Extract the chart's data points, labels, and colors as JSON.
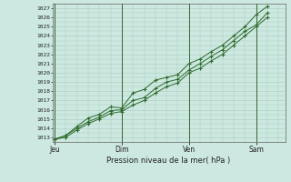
{
  "bg_color": "#cce8e0",
  "line_color": "#2d6a2d",
  "grid_color": "#aaccbb",
  "vline_color": "#336633",
  "xlabel": "Pression niveau de la mer( hPa )",
  "ylim": [
    1012.5,
    1027.5
  ],
  "yticks": [
    1013,
    1014,
    1015,
    1016,
    1017,
    1018,
    1019,
    1020,
    1021,
    1022,
    1023,
    1024,
    1025,
    1026,
    1027
  ],
  "xtick_labels": [
    "Jeu",
    "Dim",
    "Ven",
    "Sam"
  ],
  "xtick_positions": [
    0.0,
    3.0,
    6.0,
    9.0
  ],
  "xlim": [
    -0.1,
    10.3
  ],
  "series1_x": [
    0.0,
    0.5,
    1.0,
    1.5,
    2.0,
    2.5,
    3.0,
    3.5,
    4.0,
    4.5,
    5.0,
    5.5,
    6.0,
    6.5,
    7.0,
    7.5,
    8.0,
    8.5,
    9.0,
    9.5
  ],
  "series1_y": [
    1012.8,
    1013.2,
    1014.2,
    1015.1,
    1015.5,
    1016.3,
    1016.2,
    1017.8,
    1018.2,
    1019.2,
    1019.5,
    1019.8,
    1021.0,
    1021.5,
    1022.3,
    1023.0,
    1024.0,
    1025.0,
    1026.3,
    1027.2
  ],
  "series2_x": [
    0.0,
    0.5,
    1.0,
    1.5,
    2.0,
    2.5,
    3.0,
    3.5,
    4.0,
    4.5,
    5.0,
    5.5,
    6.0,
    6.5,
    7.0,
    7.5,
    8.0,
    8.5,
    9.0,
    9.5
  ],
  "series2_y": [
    1012.8,
    1013.2,
    1014.0,
    1014.7,
    1015.2,
    1015.9,
    1016.0,
    1017.0,
    1017.3,
    1018.3,
    1019.0,
    1019.3,
    1020.3,
    1021.0,
    1021.8,
    1022.5,
    1023.5,
    1024.5,
    1025.2,
    1026.5
  ],
  "series3_x": [
    0.0,
    0.5,
    1.0,
    1.5,
    2.0,
    2.5,
    3.0,
    3.5,
    4.0,
    4.5,
    5.0,
    5.5,
    6.0,
    6.5,
    7.0,
    7.5,
    8.0,
    8.5,
    9.0,
    9.5
  ],
  "series3_y": [
    1012.8,
    1013.0,
    1013.8,
    1014.5,
    1015.0,
    1015.6,
    1015.8,
    1016.5,
    1017.0,
    1017.8,
    1018.5,
    1018.9,
    1020.0,
    1020.5,
    1021.3,
    1022.0,
    1023.0,
    1024.0,
    1025.0,
    1026.0
  ]
}
